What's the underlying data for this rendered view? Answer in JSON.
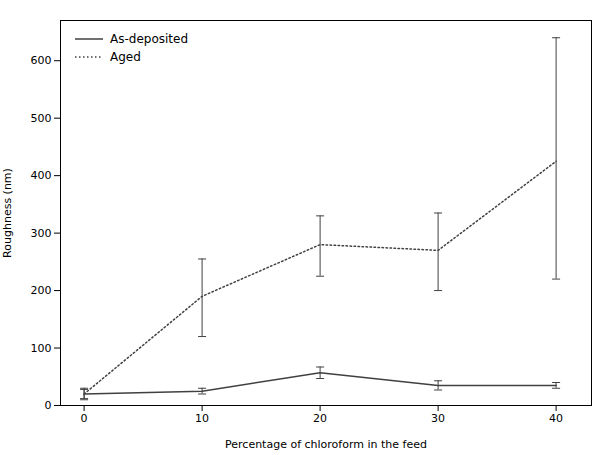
{
  "chart_data": {
    "type": "line",
    "xlabel": "Percentage of chloroform in the feed",
    "ylabel": "Roughness (nm)",
    "x": [
      0,
      10,
      20,
      30,
      40
    ],
    "series": [
      {
        "name": "As-deposited",
        "color": "#404040",
        "line_style": "solid",
        "values": [
          20,
          25,
          57,
          35,
          35
        ],
        "yerr_low": [
          8,
          5,
          10,
          8,
          5
        ],
        "yerr_high": [
          8,
          5,
          10,
          8,
          5
        ]
      },
      {
        "name": "Aged",
        "color": "#404040",
        "line_style": "dotted",
        "values": [
          20,
          190,
          280,
          270,
          425
        ],
        "yerr_low": [
          10,
          70,
          55,
          70,
          205
        ],
        "yerr_high": [
          10,
          65,
          50,
          65,
          215
        ]
      }
    ],
    "xlim": [
      -2,
      43
    ],
    "ylim": [
      0,
      670
    ],
    "xticks": [
      0,
      10,
      20,
      30,
      40
    ],
    "yticks": [
      0,
      100,
      200,
      300,
      400,
      500,
      600
    ],
    "grid": false,
    "legend": "upper left"
  }
}
